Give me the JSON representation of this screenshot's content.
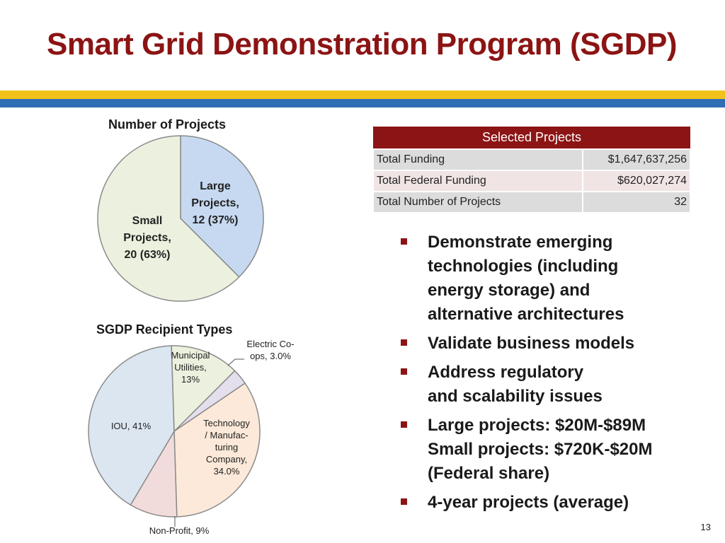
{
  "title": "Smart Grid Demonstration Program (SGDP)",
  "colors": {
    "title": "#8c1414",
    "stripe_yellow": "#f2c21b",
    "stripe_blue": "#2f6db5",
    "table_header": "#8c1414",
    "bullet_marker": "#8c1414"
  },
  "chart_data": [
    {
      "type": "pie",
      "title": "Number of Projects",
      "slices": [
        {
          "label_lines": [
            "Large",
            "Projects,",
            "12 (37%)"
          ],
          "value": 12,
          "percent": 37,
          "color": "#c6d9f1"
        },
        {
          "label_lines": [
            "Small",
            "Projects,",
            "20 (63%)"
          ],
          "value": 20,
          "percent": 63,
          "color": "#ebf1de"
        }
      ],
      "start_angle_deg": 0,
      "direction": "clockwise"
    },
    {
      "type": "pie",
      "title": "SGDP Recipient Types",
      "slices": [
        {
          "label_lines": [
            "Electric Co-",
            "ops, 3.0%"
          ],
          "percent": 3.0,
          "color": "#e4dfec"
        },
        {
          "label_lines": [
            "Technology",
            "/ Manufac-",
            "turing",
            "Company,",
            "34.0%"
          ],
          "percent": 34.0,
          "color": "#fde9d9"
        },
        {
          "label_lines": [
            "Non-Profit, 9%"
          ],
          "percent": 9,
          "color": "#f2dcdb"
        },
        {
          "label_lines": [
            "IOU, 41%"
          ],
          "percent": 41,
          "color": "#dce6f1"
        },
        {
          "label_lines": [
            "Municipal",
            "Utilities,",
            "13%"
          ],
          "percent": 13,
          "color": "#ebf1de"
        }
      ],
      "start_angle_deg": 45,
      "direction": "clockwise"
    }
  ],
  "table": {
    "header": "Selected Projects",
    "rows": [
      {
        "label": "Total Funding",
        "value": "$1,647,637,256"
      },
      {
        "label": "Total Federal Funding",
        "value": "$620,027,274"
      },
      {
        "label": "Total Number of Projects",
        "value": "32"
      }
    ]
  },
  "bullets": [
    "Demonstrate emerging\ntechnologies (including\nenergy storage) and\nalternative architectures",
    "Validate business models",
    "Address regulatory\nand scalability issues",
    "Large projects:   $20M-$89M\nSmall projects:   $720K-$20M\n(Federal share)",
    "4-year projects (average)"
  ],
  "page_number": "13"
}
